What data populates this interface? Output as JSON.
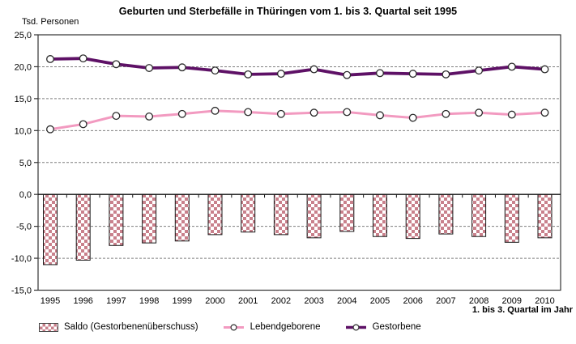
{
  "title": "Geburten und Sterbefälle in Thüringen vom 1. bis 3. Quartal seit 1995",
  "y_unit_label": "Tsd. Personen",
  "x_axis_label": "1. bis 3. Quartal im Jahr",
  "legend": {
    "saldo": "Saldo (Gestorbenenüberschuss)",
    "lebendgeborene": "Lebendgeborene",
    "gestorbene": "Gestorbene"
  },
  "colors": {
    "saldo_fill": "#c9818c",
    "saldo_border": "#1a1a1a",
    "lebendgeborene": "#f29ac0",
    "gestorbene": "#5e1166",
    "marker_fill": "#ffffff",
    "marker_stroke": "#2a2a2a",
    "gridline": "#7f7f7f",
    "axis": "#333333",
    "zero_axis": "#111111"
  },
  "chart_data": {
    "type": "bar",
    "title": "Geburten und Sterbefälle in Thüringen vom 1. bis 3. Quartal seit 1995",
    "categories": [
      "1995",
      "1996",
      "1997",
      "1998",
      "1999",
      "2000",
      "2001",
      "2002",
      "2003",
      "2004",
      "2005",
      "2006",
      "2007",
      "2008",
      "2009",
      "2010"
    ],
    "series": [
      {
        "name": "Saldo (Gestorbenenüberschuss)",
        "type": "bar",
        "values": [
          -11.0,
          -10.3,
          -8.0,
          -7.6,
          -7.3,
          -6.3,
          -5.9,
          -6.3,
          -6.8,
          -5.8,
          -6.6,
          -6.9,
          -6.2,
          -6.6,
          -7.5,
          -6.8
        ]
      },
      {
        "name": "Lebendgeborene",
        "type": "line",
        "values": [
          10.2,
          11.0,
          12.3,
          12.2,
          12.6,
          13.1,
          12.9,
          12.6,
          12.8,
          12.9,
          12.4,
          12.0,
          12.6,
          12.8,
          12.5,
          12.8
        ]
      },
      {
        "name": "Gestorbene",
        "type": "line",
        "values": [
          21.2,
          21.3,
          20.4,
          19.8,
          19.9,
          19.4,
          18.8,
          18.9,
          19.6,
          18.7,
          19.0,
          18.9,
          18.8,
          19.4,
          20.0,
          19.6
        ]
      }
    ],
    "ylabel": "Tsd. Personen",
    "xlabel": "1. bis 3. Quartal im Jahr",
    "ylim": [
      -15,
      25
    ],
    "ytick_values": [
      25,
      20,
      15,
      10,
      5,
      0,
      -5,
      -10,
      -15
    ],
    "ytick_labels": [
      "25,0",
      "20,0",
      "15,0",
      "10,0",
      "5,0",
      "0,0",
      "-5,0",
      "-10,0",
      "-15,0"
    ],
    "grid": "horizontal-dashed",
    "legend_position": "bottom"
  }
}
